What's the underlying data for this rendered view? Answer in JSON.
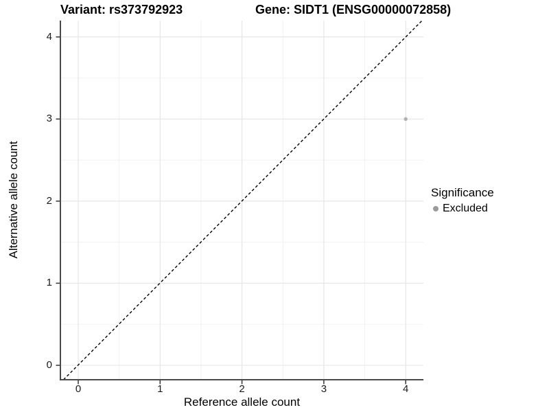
{
  "header": {
    "variant_title": "Variant: rs373792923",
    "gene_title": "Gene: SIDT1 (ENSG00000072858)"
  },
  "legend": {
    "title": "Significance",
    "items": [
      {
        "label": "Excluded",
        "color": "#9b9b9b",
        "marker": "circle-icon"
      }
    ]
  },
  "colors": {
    "background": "#ffffff",
    "axis_line": "#4a4a4a",
    "tick_mark": "#333333",
    "grid_major": "#e4e4e4",
    "grid_minor": "#f0f0f0",
    "reference_line": "#000000",
    "point": "#b0b0b0",
    "text": "#000000"
  },
  "chart_data": {
    "type": "scatter",
    "title_left": "Variant: rs373792923",
    "title_right": "Gene: SIDT1 (ENSG00000072858)",
    "xlabel": "Reference allele count",
    "ylabel": "Alternative allele count",
    "x_ticks": [
      0,
      1,
      2,
      3,
      4
    ],
    "y_ticks": [
      0,
      1,
      2,
      3,
      4
    ],
    "xlim": [
      -0.2,
      4.2
    ],
    "ylim": [
      -0.2,
      4.2
    ],
    "grid": "major+minor",
    "legend_position": "right",
    "series": [
      {
        "name": "Excluded",
        "color": "#b0b0b0",
        "points": [
          {
            "x": 4,
            "y": 3
          }
        ]
      }
    ],
    "reference_line": {
      "kind": "identity y=x",
      "style": "dashed",
      "color": "#000000"
    }
  }
}
